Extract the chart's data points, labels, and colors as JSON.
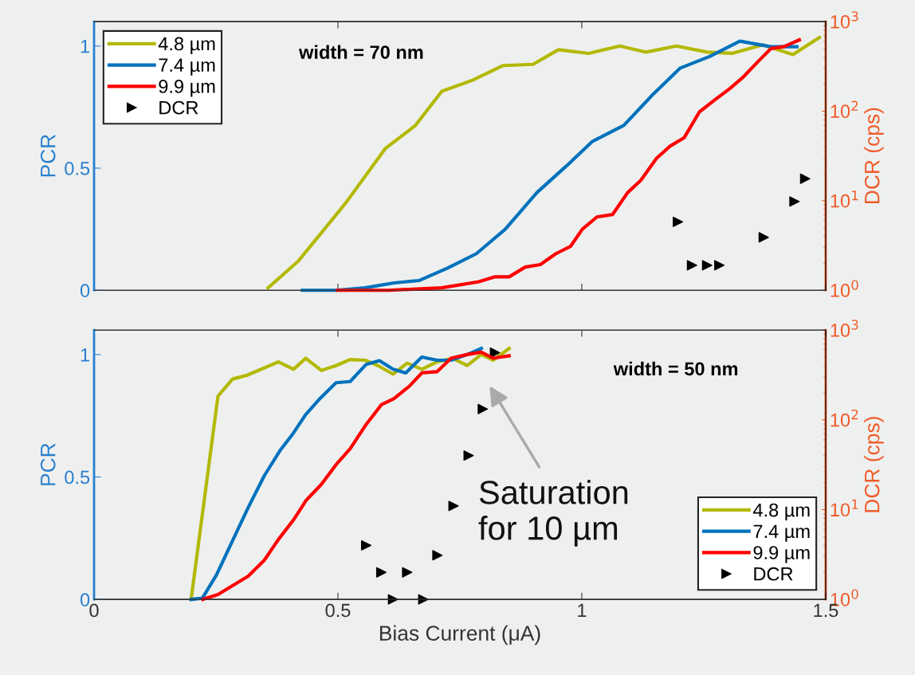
{
  "chart_data": [
    {
      "type": "line",
      "xlim": [
        0,
        1.5
      ],
      "xticks": [
        0,
        0.5,
        1,
        1.5
      ],
      "ylim": [
        0,
        1.1
      ],
      "yticks": [
        0,
        0.5,
        1
      ],
      "ylabel": "PCR",
      "y2label": "DCR (cps)",
      "log": "y2",
      "y2lim": [
        1,
        1000
      ],
      "y2ticks": [
        {
          "value": 1,
          "label": "10$^{0}$"
        },
        {
          "value": 10,
          "label": "10$^{1}$"
        },
        {
          "value": 100,
          "label": "10$^{2}$"
        },
        {
          "value": 1000,
          "label": "10$^{3}$"
        }
      ],
      "tick_labels": "y",
      "legend": "top left",
      "marker": "none",
      "line_style": "solid",
      "annotations": [
        "width = 70 nm"
      ],
      "series": [
        {
          "name": "4.8 µm",
          "color": "#b3b800",
          "x": [
            0.357,
            0.419,
            0.517,
            0.597,
            0.659,
            0.713,
            0.776,
            0.838,
            0.9,
            0.952,
            1.014,
            1.078,
            1.132,
            1.194,
            1.257,
            1.308,
            1.371,
            1.433,
            1.487
          ],
          "values": [
            0.01,
            0.12,
            0.36,
            0.58,
            0.675,
            0.815,
            0.86,
            0.92,
            0.925,
            0.985,
            0.97,
            1.0,
            0.975,
            1.0,
            0.975,
            0.97,
            1.005,
            0.965,
            1.035
          ]
        },
        {
          "name": "7.4 µm",
          "color": "#0072bd",
          "x": [
            0.427,
            0.496,
            0.556,
            0.615,
            0.667,
            0.724,
            0.784,
            0.843,
            0.908,
            0.969,
            1.022,
            1.086,
            1.145,
            1.202,
            1.262,
            1.324,
            1.388,
            1.441
          ],
          "values": [
            0.0,
            0.0,
            0.01,
            0.03,
            0.04,
            0.09,
            0.15,
            0.25,
            0.4,
            0.51,
            0.61,
            0.675,
            0.8,
            0.91,
            0.957,
            1.02,
            0.997,
            0.997
          ]
        },
        {
          "name": "9.9 µm",
          "color": "#ff0000",
          "x": [
            0.499,
            0.605,
            0.713,
            0.789,
            0.822,
            0.851,
            0.884,
            0.915,
            0.947,
            0.977,
            1.001,
            1.031,
            1.063,
            1.094,
            1.121,
            1.153,
            1.181,
            1.21,
            1.241,
            1.273,
            1.303,
            1.332,
            1.363,
            1.388,
            1.414,
            1.446
          ],
          "values": [
            0.0,
            0.0,
            0.01,
            0.035,
            0.055,
            0.055,
            0.095,
            0.105,
            0.15,
            0.18,
            0.25,
            0.3,
            0.31,
            0.4,
            0.45,
            0.54,
            0.59,
            0.625,
            0.73,
            0.78,
            0.825,
            0.875,
            0.94,
            0.99,
            0.997,
            1.025
          ]
        },
        {
          "name": "DCR",
          "type": "scatter",
          "axis": "y2",
          "marker": "triangle",
          "color": "#000000",
          "x": [
            1.197,
            1.226,
            1.257,
            1.282,
            1.373,
            1.436,
            1.458
          ],
          "values": [
            5.8,
            1.9,
            1.9,
            1.9,
            3.9,
            9.8,
            17.6
          ]
        }
      ]
    },
    {
      "type": "line",
      "xlim": [
        0,
        1.5
      ],
      "xticks": [
        0,
        0.5,
        1,
        1.5
      ],
      "xlabel": "Bias Current (μA)",
      "ylim": [
        0,
        1.1
      ],
      "yticks": [
        0,
        0.5,
        1
      ],
      "ylabel": "PCR",
      "y2label": "DCR (cps)",
      "log": "y2",
      "y2lim": [
        1,
        1000
      ],
      "y2ticks": [
        {
          "value": 1,
          "label": "10$^{0}$"
        },
        {
          "value": 10,
          "label": "10$^{1}$"
        },
        {
          "value": 100,
          "label": "10$^{2}$"
        },
        {
          "value": 1000,
          "label": "10$^{3}$"
        }
      ],
      "legend": "bottom right",
      "marker": "none",
      "line_style": "solid",
      "annotations": [
        "width = 50 nm",
        "Saturation\nfor 10 µm"
      ],
      "series": [
        {
          "name": "4.8 µm",
          "color": "#b3b800",
          "x": [
            0.199,
            0.254,
            0.284,
            0.313,
            0.378,
            0.409,
            0.434,
            0.466,
            0.496,
            0.525,
            0.556,
            0.582,
            0.613,
            0.642,
            0.672,
            0.703,
            0.735,
            0.765,
            0.794,
            0.818,
            0.851
          ],
          "values": [
            0.0,
            0.83,
            0.9,
            0.915,
            0.97,
            0.94,
            0.985,
            0.935,
            0.955,
            0.98,
            0.977,
            0.955,
            0.92,
            0.965,
            0.94,
            0.97,
            0.985,
            0.955,
            1.0,
            0.977,
            1.025
          ]
        },
        {
          "name": "7.4 µm",
          "color": "#0072bd",
          "x": [
            0.199,
            0.222,
            0.251,
            0.284,
            0.316,
            0.349,
            0.382,
            0.409,
            0.434,
            0.463,
            0.496,
            0.525,
            0.558,
            0.585,
            0.613,
            0.639,
            0.672,
            0.703,
            0.732,
            0.765,
            0.794
          ],
          "values": [
            0.0,
            0.005,
            0.1,
            0.24,
            0.375,
            0.505,
            0.61,
            0.68,
            0.755,
            0.82,
            0.885,
            0.89,
            0.96,
            0.975,
            0.94,
            0.925,
            0.99,
            0.977,
            0.977,
            1.0,
            1.025
          ]
        },
        {
          "name": "9.9 µm",
          "color": "#ff0000",
          "x": [
            0.223,
            0.254,
            0.287,
            0.316,
            0.349,
            0.378,
            0.409,
            0.435,
            0.466,
            0.496,
            0.525,
            0.558,
            0.589,
            0.615,
            0.646,
            0.672,
            0.703,
            0.732,
            0.765,
            0.794,
            0.818,
            0.851
          ],
          "values": [
            0.0,
            0.02,
            0.06,
            0.095,
            0.16,
            0.245,
            0.325,
            0.405,
            0.47,
            0.55,
            0.615,
            0.715,
            0.795,
            0.82,
            0.87,
            0.925,
            0.93,
            0.985,
            1.0,
            1.01,
            0.985,
            0.995
          ]
        },
        {
          "name": "DCR",
          "type": "scatter",
          "axis": "y2",
          "marker": "triangle",
          "color": "#000000",
          "x": [
            0.558,
            0.589,
            0.613,
            0.642,
            0.675,
            0.704,
            0.737,
            0.768,
            0.797,
            0.822
          ],
          "values": [
            4.0,
            2.0,
            1.0,
            2.0,
            1.0,
            3.1,
            11,
            40,
            132,
            560
          ]
        }
      ]
    }
  ]
}
